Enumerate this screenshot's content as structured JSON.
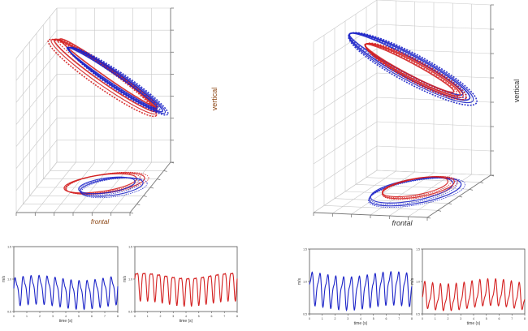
{
  "figure": {
    "colors": {
      "series_a": "#d42020",
      "series_b": "#1c24c8",
      "grid": "#c8c8c8",
      "axis": "#777777",
      "label_left": "#8b4513",
      "label_right": "#333333"
    }
  },
  "chart_data": [
    {
      "type": "line3d",
      "panel": "left-3d",
      "axis_labels": {
        "frontal": "frontal",
        "vertical": "vertical"
      },
      "grid": true,
      "series": [
        {
          "color": "#d42020",
          "loops": 5,
          "projection": true
        },
        {
          "color": "#1c24c8",
          "loops": 5,
          "projection": true
        }
      ]
    },
    {
      "type": "line3d",
      "panel": "right-3d",
      "axis_labels": {
        "frontal": "frontal",
        "vertical": "vertical"
      },
      "grid": true,
      "series": [
        {
          "color": "#d42020",
          "loops": 5,
          "projection": true
        },
        {
          "color": "#1c24c8",
          "loops": 5,
          "projection": true
        }
      ]
    },
    {
      "type": "line",
      "panel": "bottom-1",
      "color": "#1c24c8",
      "ylabel": "m/s",
      "xlabel": "time (s)",
      "xlim": [
        0,
        8
      ],
      "ylim": [
        0.5,
        1.5
      ],
      "xticks": [
        "0",
        "1",
        "2",
        "3",
        "4",
        "5",
        "6",
        "7",
        "8"
      ],
      "yticks": [
        "0.5",
        "1.0",
        "1.5"
      ],
      "cycles": 13,
      "mean": 0.82,
      "amplitude": 0.26
    },
    {
      "type": "line",
      "panel": "bottom-2",
      "color": "#d42020",
      "ylabel": "m/s",
      "xlabel": "time (s)",
      "xlim": [
        0,
        8
      ],
      "ylim": [
        0.5,
        1.5
      ],
      "xticks": [
        "0",
        "1",
        "2",
        "3",
        "4",
        "5",
        "6",
        "7",
        "8"
      ],
      "yticks": [
        "0.5",
        "1.0",
        "1.5"
      ],
      "cycles": 14,
      "mean": 0.9,
      "amplitude": 0.28
    },
    {
      "type": "line",
      "panel": "bottom-3",
      "color": "#1c24c8",
      "ylabel": "m/s",
      "xlabel": "time (s)",
      "xlim": [
        0,
        8
      ],
      "ylim": [
        0.5,
        1.5
      ],
      "xticks": [
        "0",
        "1",
        "2",
        "3",
        "4",
        "5",
        "6",
        "7",
        "8"
      ],
      "yticks": [
        "0.5",
        "1.0",
        "1.5"
      ],
      "cycles": 13,
      "mean": 0.88,
      "amplitude": 0.3
    },
    {
      "type": "line",
      "panel": "bottom-4",
      "color": "#d42020",
      "ylabel": "m/s",
      "xlabel": "time (s)",
      "xlim": [
        0,
        8
      ],
      "ylim": [
        0.5,
        1.5
      ],
      "xticks": [
        "0",
        "1",
        "2",
        "3",
        "4",
        "5",
        "6",
        "7",
        "8"
      ],
      "yticks": [
        "0.5",
        "1.0",
        "1.5"
      ],
      "cycles": 13,
      "mean": 0.78,
      "amplitude": 0.24
    }
  ]
}
